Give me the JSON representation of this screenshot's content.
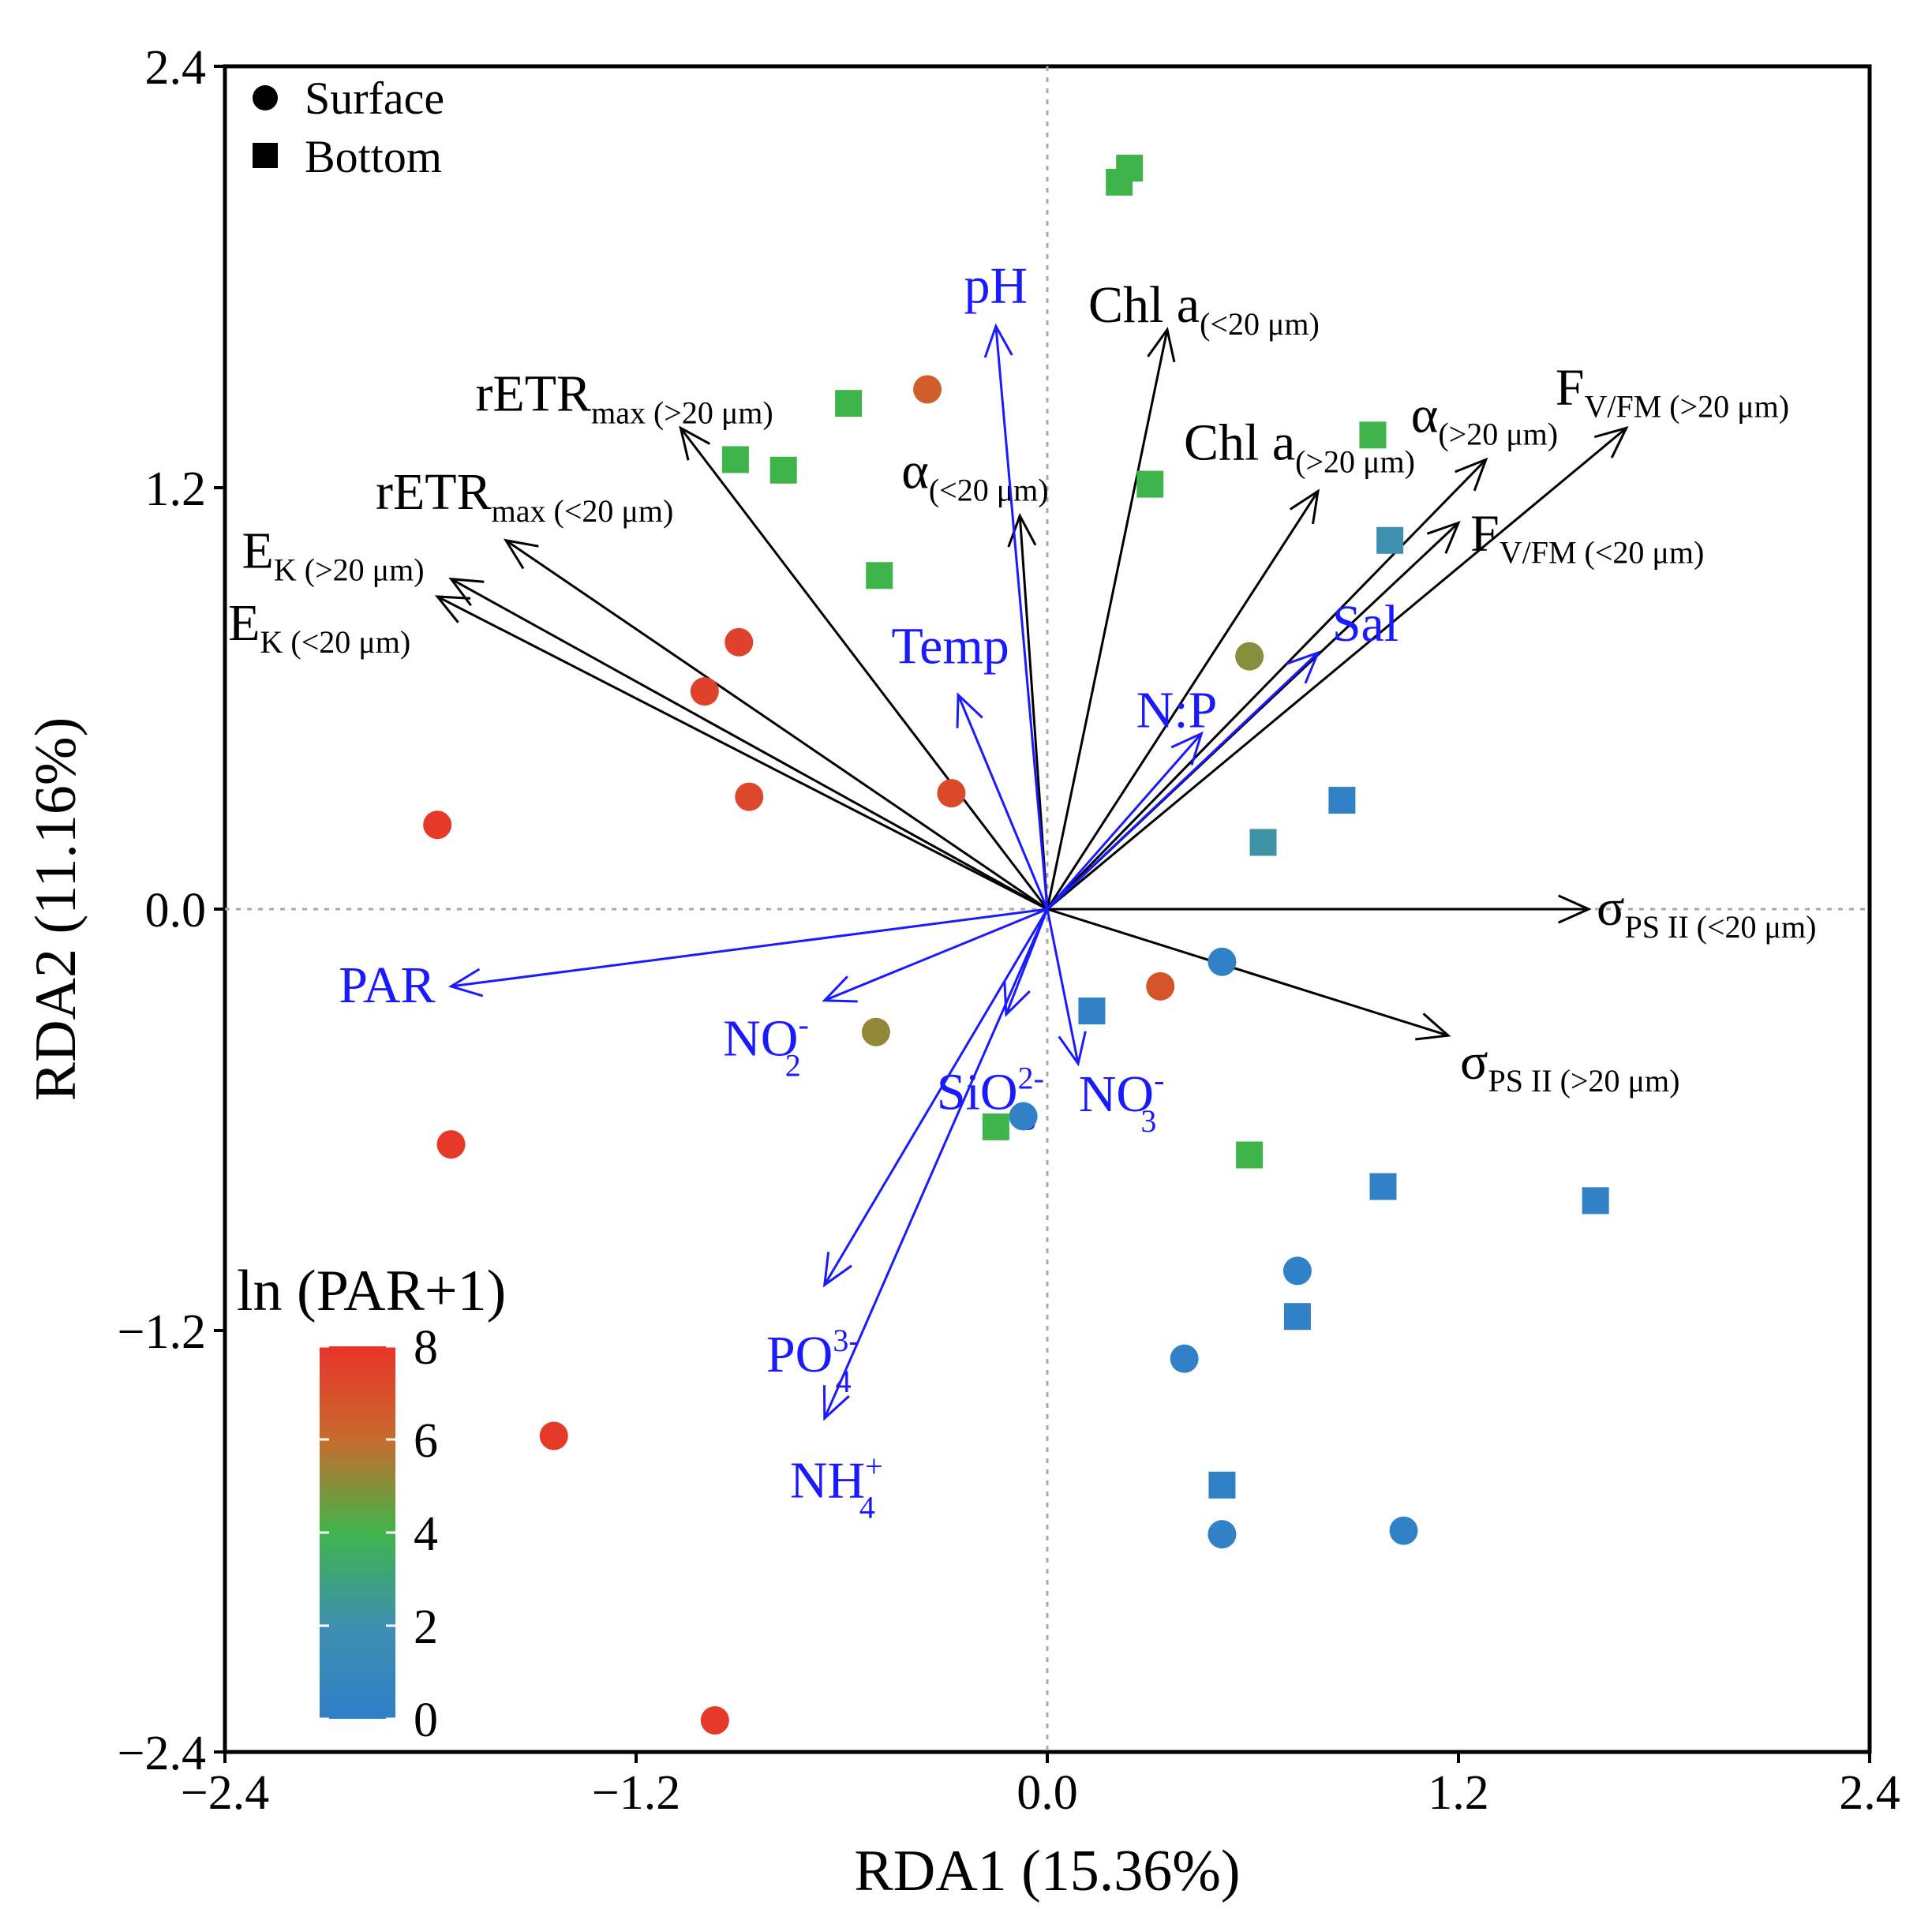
{
  "chart_data": {
    "type": "scatter",
    "title": "",
    "xlabel": "RDA1 (15.36%)",
    "ylabel": "RDA2 (11.16%)",
    "xlim": [
      -2.4,
      2.4
    ],
    "ylim": [
      -2.4,
      2.4
    ],
    "x_ticks": [
      -2.4,
      -1.2,
      0.0,
      1.2,
      2.4
    ],
    "y_ticks": [
      -2.4,
      -1.2,
      0.0,
      1.2,
      2.4
    ],
    "x_tick_labels": [
      "−2.4",
      "−1.2",
      "0.0",
      "1.2",
      "2.4"
    ],
    "y_tick_labels": [
      "2.4",
      "1.2",
      "0.0",
      "−1.2",
      "−2.4"
    ],
    "grid": false,
    "zero_lines": "dotted",
    "legend": {
      "placement": "top-left",
      "items": [
        {
          "label": "Surface",
          "shape": "circle"
        },
        {
          "label": "Bottom",
          "shape": "square"
        }
      ]
    },
    "colorbar": {
      "title": "ln (PAR+1)",
      "min": 0,
      "max": 8,
      "tick_labels": [
        "8",
        "6",
        "4",
        "2",
        "0"
      ],
      "tick_values": [
        8,
        6,
        4,
        2,
        0
      ],
      "colors": [
        "#e8332a",
        "#c86b2c",
        "#3fb44a",
        "#3e8fb0",
        "#2f7fc8"
      ]
    },
    "points": [
      {
        "x": -0.35,
        "y": 1.48,
        "shape": "circle",
        "par": 6.5
      },
      {
        "x": -0.9,
        "y": 0.76,
        "shape": "circle",
        "par": 7.5
      },
      {
        "x": -1.0,
        "y": 0.62,
        "shape": "circle",
        "par": 7.5
      },
      {
        "x": -0.87,
        "y": 0.32,
        "shape": "circle",
        "par": 7.3
      },
      {
        "x": -0.28,
        "y": 0.33,
        "shape": "circle",
        "par": 7.2
      },
      {
        "x": -1.78,
        "y": 0.24,
        "shape": "circle",
        "par": 7.8
      },
      {
        "x": 0.59,
        "y": 0.72,
        "shape": "circle",
        "par": 5.0
      },
      {
        "x": 0.33,
        "y": -0.22,
        "shape": "circle",
        "par": 6.8
      },
      {
        "x": 0.51,
        "y": -0.15,
        "shape": "circle",
        "par": 0.2
      },
      {
        "x": -0.5,
        "y": -0.35,
        "shape": "circle",
        "par": 5.2
      },
      {
        "x": -0.07,
        "y": -0.59,
        "shape": "circle",
        "par": 0.2
      },
      {
        "x": -1.74,
        "y": -0.67,
        "shape": "circle",
        "par": 7.8
      },
      {
        "x": 0.73,
        "y": -1.03,
        "shape": "circle",
        "par": 0.2
      },
      {
        "x": 0.4,
        "y": -1.28,
        "shape": "circle",
        "par": 0.2
      },
      {
        "x": -1.44,
        "y": -1.5,
        "shape": "circle",
        "par": 7.8
      },
      {
        "x": 0.51,
        "y": -1.78,
        "shape": "circle",
        "par": 0.2
      },
      {
        "x": 1.04,
        "y": -1.77,
        "shape": "circle",
        "par": 0.2
      },
      {
        "x": -0.97,
        "y": -2.31,
        "shape": "circle",
        "par": 7.8
      },
      {
        "x": 0.24,
        "y": 2.11,
        "shape": "square",
        "par": 4.0
      },
      {
        "x": 0.21,
        "y": 2.07,
        "shape": "square",
        "par": 4.0
      },
      {
        "x": -0.58,
        "y": 1.44,
        "shape": "square",
        "par": 4.0
      },
      {
        "x": -0.91,
        "y": 1.28,
        "shape": "square",
        "par": 4.0
      },
      {
        "x": -0.77,
        "y": 1.25,
        "shape": "square",
        "par": 4.0
      },
      {
        "x": 0.3,
        "y": 1.21,
        "shape": "square",
        "par": 4.0
      },
      {
        "x": -0.49,
        "y": 0.95,
        "shape": "square",
        "par": 4.0
      },
      {
        "x": 0.95,
        "y": 1.35,
        "shape": "square",
        "par": 4.0
      },
      {
        "x": 1.0,
        "y": 1.05,
        "shape": "square",
        "par": 2.0
      },
      {
        "x": 0.86,
        "y": 0.31,
        "shape": "square",
        "par": 0.2
      },
      {
        "x": 0.63,
        "y": 0.19,
        "shape": "square",
        "par": 2.2
      },
      {
        "x": 0.13,
        "y": -0.29,
        "shape": "square",
        "par": 0.2
      },
      {
        "x": -0.15,
        "y": -0.62,
        "shape": "square",
        "par": 4.0
      },
      {
        "x": 0.59,
        "y": -0.7,
        "shape": "square",
        "par": 4.0
      },
      {
        "x": 0.98,
        "y": -0.79,
        "shape": "square",
        "par": 0.2
      },
      {
        "x": 1.6,
        "y": -0.83,
        "shape": "square",
        "par": 0.2
      },
      {
        "x": 0.73,
        "y": -1.16,
        "shape": "square",
        "par": 0.2
      },
      {
        "x": 0.51,
        "y": -1.64,
        "shape": "square",
        "par": 0.2
      }
    ],
    "response_vectors": [
      {
        "label": "Chl a",
        "sub": "(<20 μm)",
        "x": 0.35,
        "y": 1.65,
        "color": "#000000"
      },
      {
        "label": "rETR",
        "sub": "max (>20 μm)",
        "x": -1.07,
        "y": 1.37,
        "color": "#000000"
      },
      {
        "label": "α",
        "sub": "(<20 μm)",
        "x": -0.08,
        "y": 1.12,
        "color": "#000000"
      },
      {
        "label": "rETR",
        "sub": "max (<20 μm)",
        "x": -1.58,
        "y": 1.05,
        "color": "#000000"
      },
      {
        "label": "E",
        "sub": "K (>20 μm)",
        "x": -1.74,
        "y": 0.94,
        "color": "#000000"
      },
      {
        "label": "E",
        "sub": "K (<20 μm)",
        "x": -1.78,
        "y": 0.89,
        "color": "#000000"
      },
      {
        "label": "Chl a",
        "sub": "(>20 μm)",
        "x": 0.79,
        "y": 1.19,
        "color": "#000000"
      },
      {
        "label": "α",
        "sub": "(>20 μm)",
        "x": 1.28,
        "y": 1.28,
        "color": "#000000"
      },
      {
        "label": "F",
        "sub": "V/FM (>20 μm)",
        "x": 1.69,
        "y": 1.37,
        "color": "#000000"
      },
      {
        "label": "F",
        "sub": "V/FM (<20 μm)",
        "x": 1.2,
        "y": 1.1,
        "color": "#000000"
      },
      {
        "label": "σ",
        "sub": "PS II (<20 μm)",
        "x": 1.58,
        "y": 0.0,
        "color": "#000000"
      },
      {
        "label": "σ",
        "sub": "PS II (>20 μm)",
        "x": 1.17,
        "y": -0.36,
        "color": "#000000"
      }
    ],
    "explanatory_vectors": [
      {
        "label": "pH",
        "x": -0.15,
        "y": 1.66,
        "color": "#1a1aff"
      },
      {
        "label": "Temp",
        "x": -0.26,
        "y": 0.61,
        "color": "#1a1aff"
      },
      {
        "label": "N:P",
        "x": 0.45,
        "y": 0.5,
        "color": "#1a1aff"
      },
      {
        "label": "Sal",
        "x": 0.79,
        "y": 0.73,
        "color": "#1a1aff"
      },
      {
        "label": "PAR",
        "x": -1.74,
        "y": -0.22,
        "color": "#1a1aff"
      },
      {
        "label": "NO2-",
        "x": -0.65,
        "y": -0.26,
        "color": "#1a1aff"
      },
      {
        "label": "SiO32-",
        "x": -0.12,
        "y": -0.3,
        "color": "#1a1aff"
      },
      {
        "label": "NO3-",
        "x": 0.09,
        "y": -0.44,
        "color": "#1a1aff"
      },
      {
        "label": "PO43-",
        "x": -0.65,
        "y": -1.07,
        "color": "#1a1aff"
      },
      {
        "label": "NH4+",
        "x": -0.65,
        "y": -1.45,
        "color": "#1a1aff"
      }
    ]
  }
}
